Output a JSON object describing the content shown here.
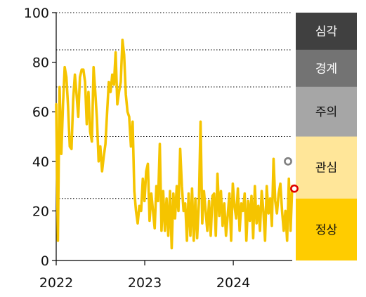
{
  "chart_data": {
    "type": "line",
    "ylim": [
      0,
      100
    ],
    "yticks": [
      0,
      20,
      40,
      60,
      80,
      100
    ],
    "xticks": [
      "2022",
      "2023",
      "2024"
    ],
    "xlim": [
      "2022-01-01",
      "2024-08-31"
    ],
    "grid": {
      "y_dotted_at": [
        25,
        50,
        70,
        85,
        100
      ]
    },
    "line_color": "#F5C400",
    "series": [
      {
        "values": [
          [
            "2022-01-01",
            63
          ],
          [
            "2022-01-08",
            8
          ],
          [
            "2022-01-15",
            70
          ],
          [
            "2022-01-22",
            43
          ],
          [
            "2022-01-29",
            63
          ],
          [
            "2022-02-05",
            78
          ],
          [
            "2022-02-12",
            74
          ],
          [
            "2022-02-19",
            62
          ],
          [
            "2022-02-26",
            46
          ],
          [
            "2022-03-05",
            45
          ],
          [
            "2022-03-12",
            65
          ],
          [
            "2022-03-19",
            75
          ],
          [
            "2022-03-26",
            67
          ],
          [
            "2022-04-02",
            58
          ],
          [
            "2022-04-09",
            74
          ],
          [
            "2022-04-16",
            77
          ],
          [
            "2022-04-23",
            77
          ],
          [
            "2022-04-30",
            72
          ],
          [
            "2022-05-07",
            55
          ],
          [
            "2022-05-14",
            68
          ],
          [
            "2022-05-21",
            52
          ],
          [
            "2022-05-28",
            48
          ],
          [
            "2022-06-04",
            78
          ],
          [
            "2022-06-11",
            68
          ],
          [
            "2022-06-18",
            57
          ],
          [
            "2022-06-25",
            40
          ],
          [
            "2022-07-02",
            46
          ],
          [
            "2022-07-09",
            36
          ],
          [
            "2022-07-16",
            42
          ],
          [
            "2022-07-23",
            47
          ],
          [
            "2022-07-30",
            60
          ],
          [
            "2022-08-06",
            72
          ],
          [
            "2022-08-13",
            68
          ],
          [
            "2022-08-20",
            75
          ],
          [
            "2022-08-27",
            71
          ],
          [
            "2022-09-03",
            84
          ],
          [
            "2022-09-10",
            63
          ],
          [
            "2022-09-17",
            68
          ],
          [
            "2022-09-24",
            72
          ],
          [
            "2022-10-01",
            89
          ],
          [
            "2022-10-08",
            83
          ],
          [
            "2022-10-15",
            67
          ],
          [
            "2022-10-22",
            60
          ],
          [
            "2022-10-29",
            58
          ],
          [
            "2022-11-05",
            46
          ],
          [
            "2022-11-12",
            56
          ],
          [
            "2022-11-19",
            28
          ],
          [
            "2022-11-26",
            20
          ],
          [
            "2022-12-03",
            15
          ],
          [
            "2022-12-10",
            22
          ],
          [
            "2022-12-17",
            20
          ],
          [
            "2022-12-24",
            33
          ],
          [
            "2022-12-31",
            24
          ],
          [
            "2023-01-07",
            36
          ],
          [
            "2023-01-14",
            39
          ],
          [
            "2023-01-21",
            16
          ],
          [
            "2023-01-28",
            27
          ],
          [
            "2023-02-04",
            20
          ],
          [
            "2023-02-11",
            13
          ],
          [
            "2023-02-18",
            30
          ],
          [
            "2023-02-25",
            24
          ],
          [
            "2023-03-04",
            47
          ],
          [
            "2023-03-11",
            12
          ],
          [
            "2023-03-18",
            28
          ],
          [
            "2023-03-25",
            12
          ],
          [
            "2023-04-01",
            25
          ],
          [
            "2023-04-08",
            10
          ],
          [
            "2023-04-15",
            28
          ],
          [
            "2023-04-22",
            5
          ],
          [
            "2023-04-29",
            27
          ],
          [
            "2023-05-06",
            17
          ],
          [
            "2023-05-13",
            30
          ],
          [
            "2023-05-20",
            20
          ],
          [
            "2023-05-27",
            45
          ],
          [
            "2023-06-03",
            30
          ],
          [
            "2023-06-10",
            20
          ],
          [
            "2023-06-17",
            23
          ],
          [
            "2023-06-24",
            8
          ],
          [
            "2023-07-01",
            27
          ],
          [
            "2023-07-08",
            10
          ],
          [
            "2023-07-15",
            29
          ],
          [
            "2023-07-22",
            8
          ],
          [
            "2023-07-29",
            25
          ],
          [
            "2023-08-05",
            9
          ],
          [
            "2023-08-12",
            23
          ],
          [
            "2023-08-19",
            56
          ],
          [
            "2023-08-26",
            15
          ],
          [
            "2023-09-02",
            28
          ],
          [
            "2023-09-09",
            20
          ],
          [
            "2023-09-16",
            12
          ],
          [
            "2023-09-23",
            24
          ],
          [
            "2023-09-30",
            10
          ],
          [
            "2023-10-07",
            26
          ],
          [
            "2023-10-14",
            27
          ],
          [
            "2023-10-21",
            10
          ],
          [
            "2023-10-28",
            35
          ],
          [
            "2023-11-04",
            18
          ],
          [
            "2023-11-11",
            28
          ],
          [
            "2023-11-18",
            14
          ],
          [
            "2023-11-25",
            23
          ],
          [
            "2023-12-02",
            10
          ],
          [
            "2023-12-09",
            18
          ],
          [
            "2023-12-16",
            27
          ],
          [
            "2023-12-23",
            8
          ],
          [
            "2023-12-30",
            31
          ],
          [
            "2024-01-06",
            22
          ],
          [
            "2024-01-13",
            17
          ],
          [
            "2024-01-20",
            29
          ],
          [
            "2024-01-27",
            12
          ],
          [
            "2024-02-03",
            23
          ],
          [
            "2024-02-10",
            20
          ],
          [
            "2024-02-17",
            27
          ],
          [
            "2024-02-24",
            8
          ],
          [
            "2024-03-02",
            24
          ],
          [
            "2024-03-09",
            16
          ],
          [
            "2024-03-16",
            26
          ],
          [
            "2024-03-23",
            9
          ],
          [
            "2024-03-30",
            30
          ],
          [
            "2024-04-06",
            15
          ],
          [
            "2024-04-13",
            22
          ],
          [
            "2024-04-20",
            12
          ],
          [
            "2024-04-27",
            28
          ],
          [
            "2024-05-04",
            20
          ],
          [
            "2024-05-11",
            8
          ],
          [
            "2024-05-18",
            30
          ],
          [
            "2024-05-25",
            19
          ],
          [
            "2024-06-01",
            25
          ],
          [
            "2024-06-08",
            14
          ],
          [
            "2024-06-15",
            41
          ],
          [
            "2024-06-22",
            24
          ],
          [
            "2024-06-29",
            19
          ],
          [
            "2024-07-06",
            27
          ],
          [
            "2024-07-13",
            31
          ],
          [
            "2024-07-20",
            20
          ],
          [
            "2024-07-27",
            12
          ],
          [
            "2024-08-03",
            20
          ],
          [
            "2024-08-10",
            8
          ],
          [
            "2024-08-17",
            33
          ],
          [
            "2024-08-24",
            12
          ],
          [
            "2024-08-31",
            30
          ]
        ]
      }
    ],
    "markers": [
      {
        "value": 40,
        "color": "#808080"
      },
      {
        "value": 29,
        "color": "#E00000"
      }
    ],
    "bands": [
      {
        "label": "심각",
        "from": 85,
        "to": 100,
        "color": "#404040",
        "text_color": "#ffffff"
      },
      {
        "label": "경계",
        "from": 70,
        "to": 85,
        "color": "#737373",
        "text_color": "#ffffff"
      },
      {
        "label": "주의",
        "from": 50,
        "to": 70,
        "color": "#A6A6A6",
        "text_color": "#111111"
      },
      {
        "label": "관심",
        "from": 25,
        "to": 50,
        "color": "#FFE699",
        "text_color": "#111111"
      },
      {
        "label": "정상",
        "from": 0,
        "to": 25,
        "color": "#FFCC00",
        "text_color": "#111111"
      }
    ]
  }
}
